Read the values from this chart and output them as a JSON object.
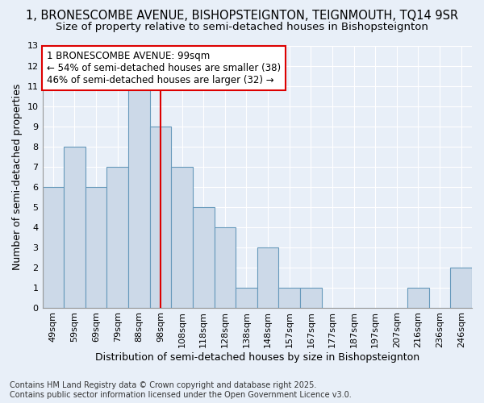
{
  "title_line1": "1, BRONESCOMBE AVENUE, BISHOPSTEIGNTON, TEIGNMOUTH, TQ14 9SR",
  "title_line2": "Size of property relative to semi-detached houses in Bishopsteignton",
  "xlabel": "Distribution of semi-detached houses by size in Bishopsteignton",
  "ylabel": "Number of semi-detached properties",
  "categories": [
    "49sqm",
    "59sqm",
    "69sqm",
    "79sqm",
    "88sqm",
    "98sqm",
    "108sqm",
    "118sqm",
    "128sqm",
    "138sqm",
    "148sqm",
    "157sqm",
    "167sqm",
    "177sqm",
    "187sqm",
    "197sqm",
    "207sqm",
    "216sqm",
    "236sqm",
    "246sqm"
  ],
  "values": [
    6,
    8,
    6,
    7,
    11,
    9,
    7,
    5,
    4,
    1,
    3,
    1,
    1,
    0,
    0,
    0,
    0,
    1,
    0,
    2
  ],
  "bar_color": "#ccd9e8",
  "bar_edge_color": "#6699bb",
  "vline_x_index": 5,
  "vline_color": "#dd0000",
  "annotation_text": "1 BRONESCOMBE AVENUE: 99sqm\n← 54% of semi-detached houses are smaller (38)\n46% of semi-detached houses are larger (32) →",
  "annotation_box_facecolor": "#ffffff",
  "annotation_box_edgecolor": "#dd0000",
  "ylim": [
    0,
    13
  ],
  "yticks": [
    0,
    1,
    2,
    3,
    4,
    5,
    6,
    7,
    8,
    9,
    10,
    11,
    12,
    13
  ],
  "footnote": "Contains HM Land Registry data © Crown copyright and database right 2025.\nContains public sector information licensed under the Open Government Licence v3.0.",
  "background_color": "#e8eff8",
  "grid_color": "#ffffff",
  "title_fontsize": 10.5,
  "subtitle_fontsize": 9.5,
  "axis_label_fontsize": 9,
  "tick_fontsize": 8,
  "annotation_fontsize": 8.5,
  "footnote_fontsize": 7
}
